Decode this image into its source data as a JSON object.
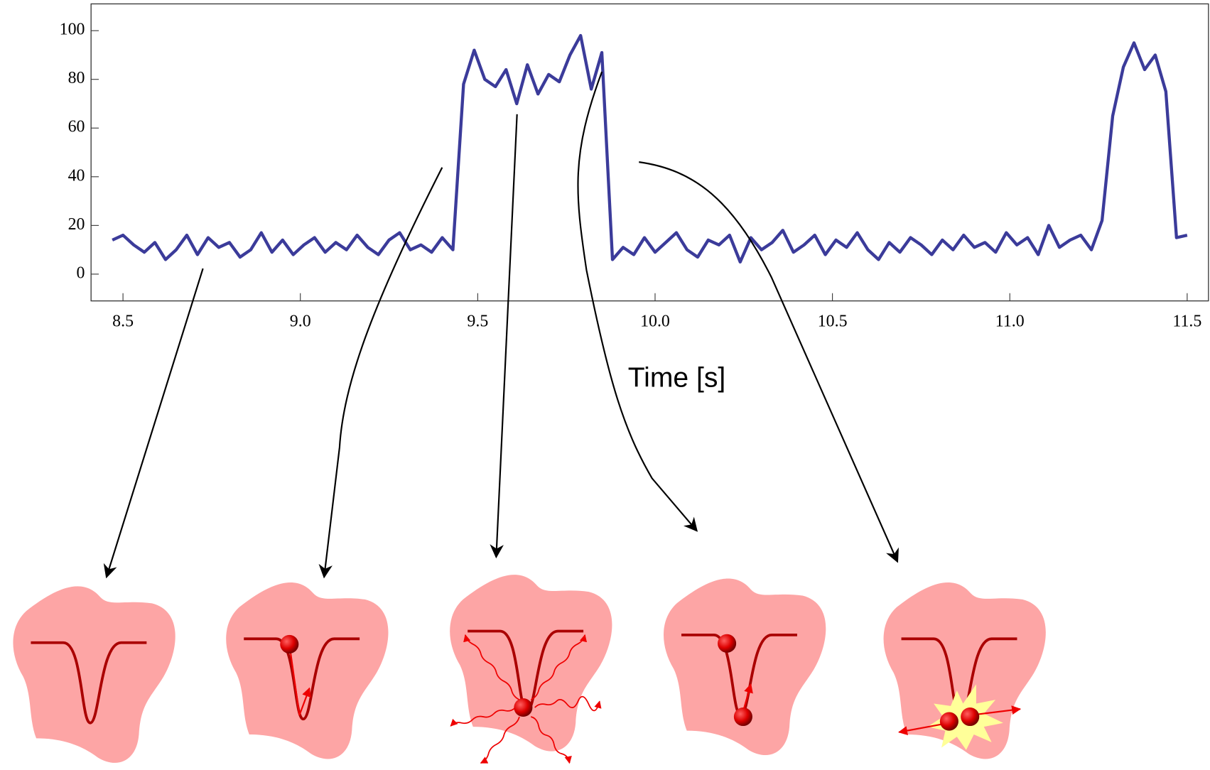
{
  "chart_data": {
    "type": "line",
    "x_label": "Time [s]",
    "color": "#3b3b9a",
    "x": [
      8.47,
      8.5,
      8.53,
      8.56,
      8.59,
      8.62,
      8.65,
      8.68,
      8.71,
      8.74,
      8.77,
      8.8,
      8.83,
      8.86,
      8.89,
      8.92,
      8.95,
      8.98,
      9.01,
      9.04,
      9.07,
      9.1,
      9.13,
      9.16,
      9.19,
      9.22,
      9.25,
      9.28,
      9.31,
      9.34,
      9.37,
      9.4,
      9.43,
      9.46,
      9.49,
      9.52,
      9.55,
      9.58,
      9.61,
      9.64,
      9.67,
      9.7,
      9.73,
      9.76,
      9.79,
      9.82,
      9.85,
      9.88,
      9.91,
      9.94,
      9.97,
      10,
      10.03,
      10.06,
      10.09,
      10.12,
      10.15,
      10.18,
      10.21,
      10.24,
      10.27,
      10.3,
      10.33,
      10.36,
      10.39,
      10.42,
      10.45,
      10.48,
      10.51,
      10.54,
      10.57,
      10.6,
      10.63,
      10.66,
      10.69,
      10.72,
      10.75,
      10.78,
      10.81,
      10.84,
      10.87,
      10.9,
      10.93,
      10.96,
      10.99,
      11.02,
      11.05,
      11.08,
      11.11,
      11.14,
      11.17,
      11.2,
      11.23,
      11.26,
      11.29,
      11.32,
      11.35,
      11.38,
      11.41,
      11.44,
      11.47,
      11.5
    ],
    "values": [
      14,
      16,
      12,
      9,
      13,
      6,
      10,
      16,
      8,
      15,
      11,
      13,
      7,
      10,
      17,
      9,
      14,
      8,
      12,
      15,
      9,
      13,
      10,
      16,
      11,
      8,
      14,
      17,
      10,
      12,
      9,
      15,
      10,
      78,
      92,
      80,
      77,
      84,
      70,
      86,
      74,
      82,
      79,
      90,
      98,
      76,
      91,
      6,
      11,
      8,
      15,
      9,
      13,
      17,
      10,
      7,
      14,
      12,
      16,
      5,
      15,
      10,
      13,
      18,
      9,
      12,
      16,
      8,
      14,
      11,
      17,
      10,
      6,
      13,
      9,
      15,
      12,
      8,
      14,
      10,
      16,
      11,
      13,
      9,
      17,
      12,
      15,
      8,
      20,
      11,
      14,
      16,
      10,
      22,
      65,
      85,
      95,
      84,
      90,
      75,
      15,
      16
    ],
    "xlim": [
      8.41,
      11.56
    ],
    "ylim": [
      -11,
      111
    ],
    "xticks": [
      8.5,
      {
        "value": 9,
        "label": "9.0"
      },
      9.5,
      {
        "value": 10,
        "label": "10.0"
      },
      10.5,
      {
        "value": 11,
        "label": "11.0"
      },
      11.5
    ],
    "yticks": [
      0,
      20,
      40,
      60,
      80,
      100
    ]
  }
}
